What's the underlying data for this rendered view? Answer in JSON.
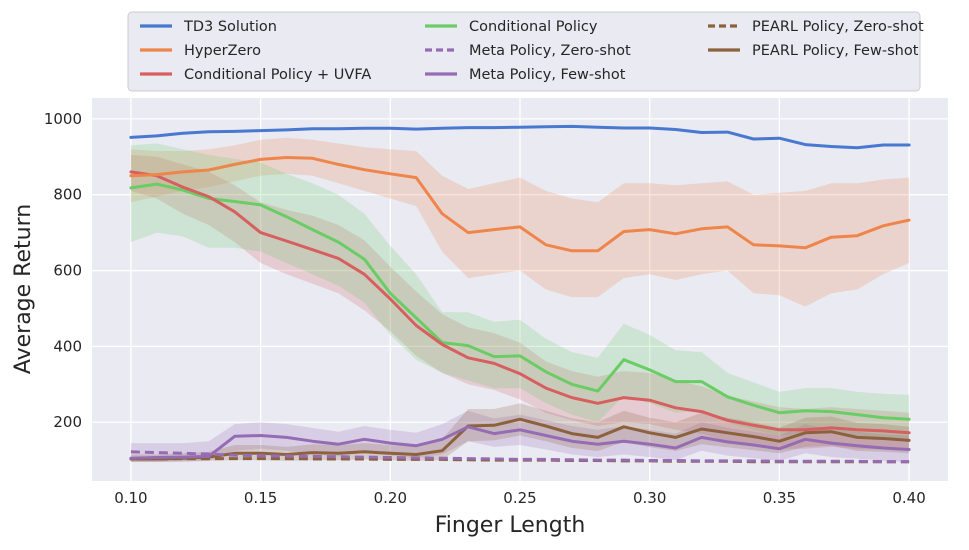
{
  "chart_data": {
    "type": "line",
    "title": "",
    "xlabel": "Finger Length",
    "ylabel": "Average Return",
    "xlim": [
      0.085,
      0.415
    ],
    "ylim": [
      45,
      1055
    ],
    "grid": true,
    "legend_position": "top",
    "x": [
      0.1,
      0.11,
      0.12,
      0.13,
      0.14,
      0.15,
      0.16,
      0.17,
      0.18,
      0.19,
      0.2,
      0.21,
      0.22,
      0.23,
      0.24,
      0.25,
      0.26,
      0.27,
      0.28,
      0.29,
      0.3,
      0.31,
      0.32,
      0.33,
      0.34,
      0.35,
      0.36,
      0.37,
      0.38,
      0.39,
      0.4
    ],
    "xticks": [
      0.1,
      0.15,
      0.2,
      0.25,
      0.3,
      0.35,
      0.4
    ],
    "xtick_labels": [
      "0.10",
      "0.15",
      "0.20",
      "0.25",
      "0.30",
      "0.35",
      "0.40"
    ],
    "yticks": [
      200,
      400,
      600,
      800,
      1000
    ],
    "ytick_labels": [
      "200",
      "400",
      "600",
      "800",
      "1000"
    ],
    "series": [
      {
        "name": "TD3 Solution",
        "color": "#4878d0",
        "dash": false,
        "values": [
          951,
          955,
          962,
          966,
          967,
          969,
          971,
          974,
          974,
          975,
          975,
          973,
          975,
          977,
          977,
          978,
          979,
          980,
          978,
          976,
          976,
          972,
          964,
          965,
          947,
          949,
          932,
          927,
          924,
          931,
          931
        ],
        "band": null
      },
      {
        "name": "HyperZero",
        "color": "#ee854a",
        "dash": false,
        "values": [
          850,
          853,
          860,
          865,
          880,
          893,
          898,
          896,
          880,
          866,
          855,
          845,
          750,
          700,
          708,
          715,
          668,
          652,
          652,
          703,
          708,
          697,
          710,
          715,
          668,
          665,
          660,
          688,
          692,
          718,
          733
        ],
        "band": [
          [
            780,
            920
          ],
          [
            795,
            915
          ],
          [
            810,
            915
          ],
          [
            820,
            920
          ],
          [
            835,
            930
          ],
          [
            850,
            945
          ],
          [
            855,
            950
          ],
          [
            850,
            945
          ],
          [
            830,
            935
          ],
          [
            810,
            925
          ],
          [
            790,
            920
          ],
          [
            770,
            915
          ],
          [
            650,
            850
          ],
          [
            580,
            815
          ],
          [
            590,
            830
          ],
          [
            600,
            845
          ],
          [
            550,
            810
          ],
          [
            530,
            790
          ],
          [
            530,
            780
          ],
          [
            580,
            830
          ],
          [
            590,
            830
          ],
          [
            575,
            825
          ],
          [
            590,
            830
          ],
          [
            600,
            835
          ],
          [
            540,
            800
          ],
          [
            535,
            805
          ],
          [
            505,
            810
          ],
          [
            540,
            830
          ],
          [
            550,
            830
          ],
          [
            590,
            840
          ],
          [
            620,
            845
          ]
        ]
      },
      {
        "name": "Conditional Policy + UVFA",
        "color": "#d65f5f",
        "dash": false,
        "values": [
          860,
          850,
          820,
          795,
          755,
          700,
          678,
          655,
          632,
          590,
          525,
          455,
          405,
          370,
          355,
          328,
          290,
          265,
          250,
          265,
          258,
          238,
          228,
          205,
          192,
          180,
          180,
          185,
          180,
          177,
          172
        ],
        "band": [
          [
            810,
            905
          ],
          [
            790,
            900
          ],
          [
            750,
            880
          ],
          [
            720,
            860
          ],
          [
            675,
            825
          ],
          [
            620,
            780
          ],
          [
            590,
            760
          ],
          [
            565,
            745
          ],
          [
            540,
            720
          ],
          [
            495,
            680
          ],
          [
            440,
            610
          ],
          [
            375,
            545
          ],
          [
            330,
            485
          ],
          [
            300,
            450
          ],
          [
            285,
            435
          ],
          [
            260,
            410
          ],
          [
            225,
            360
          ],
          [
            205,
            335
          ],
          [
            190,
            320
          ],
          [
            200,
            335
          ],
          [
            195,
            330
          ],
          [
            180,
            310
          ],
          [
            170,
            295
          ],
          [
            150,
            270
          ],
          [
            140,
            255
          ],
          [
            130,
            240
          ],
          [
            130,
            235
          ],
          [
            135,
            240
          ],
          [
            130,
            235
          ],
          [
            128,
            230
          ],
          [
            125,
            225
          ]
        ]
      },
      {
        "name": "Conditional Policy",
        "color": "#6acc64",
        "dash": false,
        "values": [
          818,
          828,
          812,
          790,
          782,
          773,
          742,
          708,
          675,
          630,
          540,
          475,
          410,
          402,
          373,
          375,
          333,
          300,
          282,
          365,
          338,
          307,
          307,
          267,
          245,
          225,
          230,
          228,
          220,
          212,
          208
        ],
        "band": [
          [
            675,
            930
          ],
          [
            700,
            935
          ],
          [
            690,
            920
          ],
          [
            660,
            905
          ],
          [
            660,
            895
          ],
          [
            650,
            885
          ],
          [
            620,
            855
          ],
          [
            590,
            830
          ],
          [
            560,
            800
          ],
          [
            515,
            750
          ],
          [
            430,
            665
          ],
          [
            365,
            590
          ],
          [
            330,
            490
          ],
          [
            310,
            490
          ],
          [
            290,
            465
          ],
          [
            290,
            470
          ],
          [
            250,
            420
          ],
          [
            220,
            385
          ],
          [
            200,
            370
          ],
          [
            270,
            460
          ],
          [
            250,
            430
          ],
          [
            225,
            390
          ],
          [
            230,
            385
          ],
          [
            200,
            330
          ],
          [
            180,
            305
          ],
          [
            165,
            280
          ],
          [
            170,
            290
          ],
          [
            170,
            290
          ],
          [
            165,
            280
          ],
          [
            155,
            275
          ],
          [
            150,
            272
          ]
        ]
      },
      {
        "name": "Meta Policy, Zero-shot",
        "color": "#956cb4",
        "dash": true,
        "values": [
          122,
          120,
          118,
          116,
          113,
          112,
          111,
          110,
          109,
          108,
          107,
          106,
          105,
          104,
          103,
          102,
          102,
          101,
          100,
          100,
          99,
          99,
          98,
          98,
          98,
          97,
          97,
          97,
          97,
          96,
          96
        ],
        "band": null
      },
      {
        "name": "Meta Policy, Few-shot",
        "color": "#956cb4",
        "dash": false,
        "values": [
          105,
          107,
          108,
          110,
          163,
          165,
          160,
          150,
          142,
          155,
          145,
          138,
          155,
          188,
          170,
          180,
          165,
          150,
          142,
          150,
          142,
          132,
          160,
          148,
          140,
          130,
          155,
          145,
          138,
          132,
          128
        ],
        "band": [
          [
            95,
            145
          ],
          [
            95,
            145
          ],
          [
            97,
            145
          ],
          [
            98,
            150
          ],
          [
            125,
            195
          ],
          [
            130,
            200
          ],
          [
            125,
            195
          ],
          [
            115,
            185
          ],
          [
            110,
            175
          ],
          [
            120,
            190
          ],
          [
            112,
            180
          ],
          [
            105,
            172
          ],
          [
            115,
            195
          ],
          [
            150,
            230
          ],
          [
            135,
            210
          ],
          [
            140,
            220
          ],
          [
            128,
            205
          ],
          [
            115,
            190
          ],
          [
            108,
            180
          ],
          [
            115,
            190
          ],
          [
            108,
            180
          ],
          [
            100,
            170
          ],
          [
            125,
            200
          ],
          [
            112,
            185
          ],
          [
            105,
            175
          ],
          [
            98,
            165
          ],
          [
            118,
            195
          ],
          [
            108,
            180
          ],
          [
            104,
            175
          ],
          [
            98,
            168
          ],
          [
            95,
            165
          ]
        ]
      },
      {
        "name": "PEARL Policy, Zero-shot",
        "color": "#8c613c",
        "dash": true,
        "values": [
          103,
          103,
          104,
          104,
          104,
          104,
          104,
          103,
          103,
          103,
          102,
          102,
          102,
          101,
          100,
          100,
          100,
          99,
          99,
          98,
          98,
          97,
          97,
          97,
          96,
          96,
          96,
          96,
          96,
          96,
          96
        ],
        "band": null
      },
      {
        "name": "PEARL Policy, Few-shot",
        "color": "#8c613c",
        "dash": false,
        "values": [
          103,
          103,
          105,
          108,
          118,
          118,
          115,
          120,
          118,
          122,
          118,
          115,
          125,
          190,
          192,
          208,
          190,
          170,
          160,
          188,
          172,
          160,
          182,
          172,
          162,
          150,
          172,
          175,
          160,
          157,
          152
        ],
        "band": [
          [
            95,
            115
          ],
          [
            95,
            115
          ],
          [
            96,
            118
          ],
          [
            98,
            122
          ],
          [
            100,
            140
          ],
          [
            100,
            140
          ],
          [
            98,
            135
          ],
          [
            100,
            142
          ],
          [
            100,
            140
          ],
          [
            102,
            145
          ],
          [
            100,
            140
          ],
          [
            98,
            135
          ],
          [
            100,
            155
          ],
          [
            150,
            235
          ],
          [
            152,
            235
          ],
          [
            165,
            250
          ],
          [
            150,
            230
          ],
          [
            132,
            210
          ],
          [
            124,
            200
          ],
          [
            148,
            230
          ],
          [
            134,
            212
          ],
          [
            124,
            200
          ],
          [
            142,
            225
          ],
          [
            134,
            212
          ],
          [
            126,
            200
          ],
          [
            118,
            185
          ],
          [
            135,
            212
          ],
          [
            138,
            215
          ],
          [
            124,
            198
          ],
          [
            122,
            195
          ],
          [
            118,
            188
          ]
        ]
      }
    ]
  }
}
